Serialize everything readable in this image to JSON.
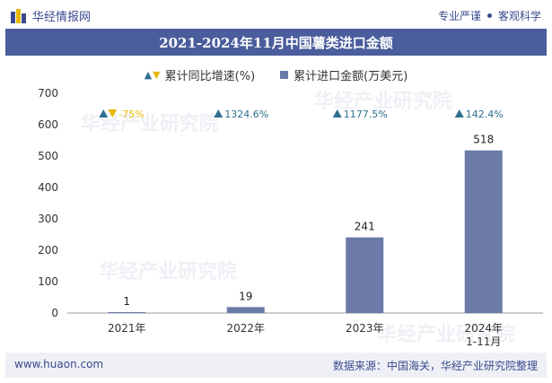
{
  "header": {
    "brand": "华经情报网",
    "slogan_left": "专业严谨",
    "slogan_right": "客观科学"
  },
  "colors": {
    "bar": "#6b7aa8",
    "title_bg": "#4a5d9c",
    "up_marker": "#2f6f8f",
    "down_marker": "#e6b800",
    "growth_text": "#2f6f8f",
    "growth_text_negative": "#e6b800"
  },
  "footer": {
    "website": "www.huaon.com",
    "source": "数据来源：中国海关，华经产业研究院整理"
  },
  "watermark": "华经产业研究院",
  "chart_data": {
    "type": "bar",
    "title": "2021-2024年11月中国薯类进口金额",
    "categories": [
      "2021年",
      "2022年",
      "2023年",
      "2024年\n1-11月"
    ],
    "category_lines": [
      [
        "2021年"
      ],
      [
        "2022年"
      ],
      [
        "2023年"
      ],
      [
        "2024年",
        "1-11月"
      ]
    ],
    "series": [
      {
        "name": "累计进口金额(万美元)",
        "values": [
          1,
          19,
          241,
          518
        ]
      }
    ],
    "growth": {
      "name": "累计同比增速(%)",
      "labels": [
        "-75%",
        "1324.6%",
        "1177.5%",
        "142.4%"
      ],
      "direction": [
        "down",
        "up",
        "up",
        "up"
      ]
    },
    "legend": {
      "growth_label": "累计同比增速(%)",
      "bar_label": "累计进口金额(万美元)",
      "position": "top"
    },
    "ylim": [
      0,
      700
    ],
    "yticks": [
      0,
      100,
      200,
      300,
      400,
      500,
      600,
      700
    ],
    "grid": false
  }
}
